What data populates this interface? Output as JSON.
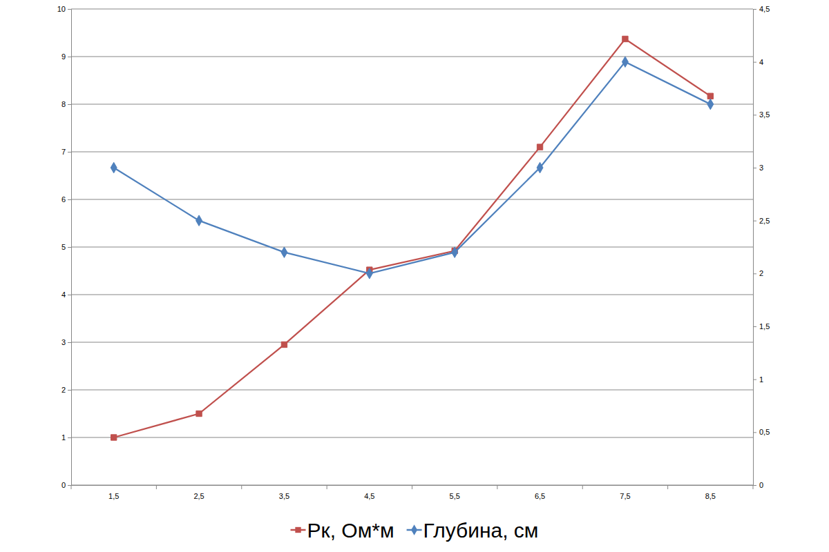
{
  "chart_data": {
    "type": "line",
    "categories": [
      "1,5",
      "2,5",
      "3,5",
      "4,5",
      "5,5",
      "6,5",
      "7,5",
      "8,5"
    ],
    "series": [
      {
        "name": "Рк,  Ом*м",
        "color": "#c0504d",
        "marker": "square",
        "values": [
          1.0,
          1.5,
          2.95,
          4.52,
          4.92,
          7.1,
          9.37,
          8.17
        ]
      },
      {
        "name": "Глубина, см",
        "color": "#4f81bd",
        "marker": "diamond",
        "axis": "y2",
        "values": [
          3.0,
          2.5,
          2.2,
          2.0,
          2.2,
          3.0,
          4.0,
          3.6
        ]
      }
    ],
    "ylim": [
      0,
      10
    ],
    "yticks": [
      0,
      1,
      2,
      3,
      4,
      5,
      6,
      7,
      8,
      9,
      10
    ],
    "y2lim": [
      0,
      4.5
    ],
    "y2ticks": [
      0,
      {
        "value": 0.5,
        "label": "0,5"
      },
      1,
      {
        "value": 1.5,
        "label": "1,5"
      },
      2,
      {
        "value": 2.5,
        "label": "2,5"
      },
      3,
      {
        "value": 3.5,
        "label": "3,5"
      },
      4,
      {
        "value": 4.5,
        "label": "4,5"
      }
    ],
    "grid": true,
    "legend": "bottom"
  }
}
